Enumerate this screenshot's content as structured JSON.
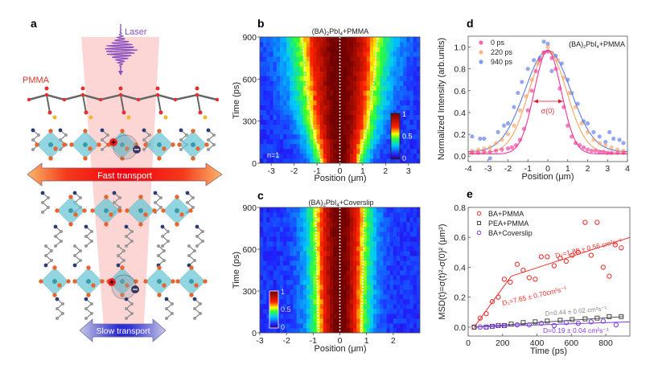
{
  "figure": {
    "panel_labels": [
      "a",
      "b",
      "c",
      "d",
      "e"
    ]
  },
  "schematic": {
    "laser_label": "Laser",
    "pmma_label": "PMMA",
    "fast_transport_label": "Fast transport",
    "slow_transport_label": "Slow transport",
    "colors": {
      "beam": "#fcd0d0",
      "laser": "#8a4fc0",
      "pmma_label": "#d23a2a",
      "octahedron": "#6cc8d6",
      "iodide": "#e8642c",
      "nitrogen": "#2a3f7a",
      "carbon": "#9a9a9a",
      "fast_arrow": "#f01818",
      "slow_arrow": "#3a3ad8"
    }
  },
  "chart_data": [
    {
      "panel": "b",
      "type": "heatmap",
      "title": "(BA)2PbI4+PMMA",
      "title_main": "(BA)",
      "title_sub1": "2",
      "title_mid": "PbI",
      "title_sub2": "4",
      "title_tail": "+PMMA",
      "xlabel": "Position (μm)",
      "ylabel": "Time (ps)",
      "xlim": [
        -3.5,
        3.5
      ],
      "ylim": [
        0,
        900
      ],
      "xticks": [
        -3,
        -2,
        -1,
        0,
        1,
        2,
        3
      ],
      "yticks": [
        0,
        300,
        600,
        900
      ],
      "colorbar": {
        "ticks": [
          "1",
          "0.5",
          "0"
        ],
        "range": [
          0,
          1
        ],
        "placement": "bottom-right"
      },
      "annotation": "n=1",
      "sigma_at_t": {
        "t": [
          0,
          300,
          600,
          900
        ],
        "halfwidth": [
          0.8,
          1.25,
          1.5,
          1.65
        ]
      },
      "center": 0
    },
    {
      "panel": "c",
      "type": "heatmap",
      "title": "(BA)2PbI4+Coverslip",
      "title_main": "(BA)",
      "title_sub1": "2",
      "title_mid": "PbI",
      "title_sub2": "4",
      "title_tail": "+Coverslip",
      "xlabel": "Position (μm)",
      "ylabel": "Time (ps)",
      "xlim": [
        -3,
        3
      ],
      "ylim": [
        0,
        900
      ],
      "xticks": [
        -3,
        -2,
        -1,
        0,
        1,
        2
      ],
      "yticks": [
        0,
        300,
        600,
        900
      ],
      "colorbar": {
        "ticks": [
          "1",
          "0.5",
          "0"
        ],
        "range": [
          0,
          1
        ],
        "placement": "bottom-left"
      },
      "sigma_at_t": {
        "t": [
          0,
          300,
          600,
          900
        ],
        "halfwidth": [
          0.8,
          0.85,
          0.88,
          0.9
        ]
      },
      "center": 0
    },
    {
      "panel": "d",
      "type": "scatter",
      "title": "(BA)2PbI4+PMMA",
      "title_main": "(BA)",
      "title_sub1": "2",
      "title_mid": "PbI",
      "title_sub2": "4",
      "title_tail": "+PMMA",
      "xlabel": "Position (μm)",
      "ylabel": "Normalized Intensity (arb.units)",
      "xlim": [
        -4,
        4
      ],
      "ylim": [
        -0.05,
        1.1
      ],
      "xticks": [
        -4,
        -3,
        -2,
        -1,
        0,
        1,
        2,
        3,
        4
      ],
      "yticks": [
        "0.0",
        "0.2",
        "0.4",
        "0.6",
        "0.8",
        "1.0"
      ],
      "legend_placement": "top-left",
      "annotation": "σ(0)",
      "series": [
        {
          "name": "0 ps",
          "color": "#f0359a",
          "fit_sigma": 0.68,
          "fit_amp": 0.95,
          "fit_offset": 0.02,
          "x": [
            -3.8,
            -3.5,
            -3.2,
            -2.9,
            -2.6,
            -2.3,
            -2.0,
            -1.8,
            -1.6,
            -1.4,
            -1.2,
            -1.0,
            -0.8,
            -0.6,
            -0.4,
            -0.2,
            0.0,
            0.2,
            0.4,
            0.6,
            0.8,
            1.0,
            1.2,
            1.4,
            1.6,
            1.8,
            2.0,
            2.2,
            2.4,
            2.6,
            2.8,
            3.0,
            3.2,
            3.5,
            3.8
          ],
          "y": [
            0.03,
            0.03,
            0.04,
            0.04,
            0.05,
            0.06,
            0.07,
            0.08,
            0.1,
            0.15,
            0.25,
            0.42,
            0.6,
            0.78,
            0.88,
            0.95,
            0.96,
            0.9,
            0.8,
            0.62,
            0.45,
            0.28,
            0.18,
            0.12,
            0.1,
            0.08,
            0.06,
            0.05,
            0.05,
            0.04,
            0.04,
            0.03,
            0.03,
            0.03,
            0.03
          ]
        },
        {
          "name": "220 ps",
          "color": "#f7a25c",
          "fit_sigma": 0.95,
          "fit_amp": 0.93,
          "fit_offset": 0.03,
          "x": [
            -3.8,
            -3.5,
            -3.2,
            -2.9,
            -2.6,
            -2.3,
            -2.0,
            -1.7,
            -1.4,
            -1.1,
            -0.8,
            -0.5,
            -0.2,
            0.0,
            0.2,
            0.5,
            0.8,
            1.1,
            1.4,
            1.7,
            2.0,
            2.3,
            2.6,
            2.9,
            3.2,
            3.5,
            3.8
          ],
          "y": [
            0.05,
            0.06,
            0.07,
            0.08,
            0.12,
            0.15,
            0.2,
            0.28,
            0.42,
            0.55,
            0.7,
            0.85,
            0.95,
            1.0,
            0.95,
            0.88,
            0.72,
            0.58,
            0.45,
            0.3,
            0.22,
            0.15,
            0.12,
            0.1,
            0.08,
            0.06,
            0.05
          ]
        },
        {
          "name": "940 ps",
          "color": "#5a7ae6",
          "fit_sigma": 1.15,
          "fit_amp": 0.93,
          "fit_offset": 0.04,
          "x": [
            -3.8,
            -3.4,
            -3.2,
            -2.9,
            -2.5,
            -2.2,
            -2.0,
            -1.7,
            -1.5,
            -1.3,
            -1.0,
            -0.7,
            -0.4,
            -0.2,
            0.0,
            0.2,
            0.4,
            0.7,
            1.0,
            1.2,
            1.5,
            1.8,
            2.0,
            2.3,
            2.6,
            2.9,
            3.1,
            3.3,
            3.6,
            3.8
          ],
          "y": [
            0.18,
            0.16,
            0.16,
            -0.02,
            0.22,
            0.28,
            0.3,
            0.45,
            0.58,
            0.68,
            0.8,
            0.88,
            0.9,
            1.05,
            1.03,
            0.78,
            0.92,
            0.85,
            0.7,
            0.58,
            0.48,
            0.32,
            0.3,
            0.22,
            0.18,
            0.13,
            0.22,
            0.16,
            0.15,
            0.12
          ]
        }
      ]
    },
    {
      "panel": "e",
      "type": "scatter",
      "xlabel": "Time (ps)",
      "ylabel": "MSD(t)=σ(t)²-σ(0)² (μm²)",
      "xlim": [
        0,
        940
      ],
      "ylim": [
        -0.06,
        0.8
      ],
      "xticks": [
        0,
        200,
        400,
        600,
        800
      ],
      "yticks": [
        "0.0",
        "0.2",
        "0.4",
        "0.6",
        "0.8"
      ],
      "legend_placement": "top-left",
      "series": [
        {
          "name": "BA+PMMA",
          "color": "#f0302e",
          "marker": "circle",
          "x": [
            35,
            70,
            105,
            140,
            175,
            210,
            245,
            285,
            320,
            355,
            390,
            425,
            460,
            500,
            535,
            570,
            605,
            640,
            680,
            715,
            750,
            785,
            820,
            855,
            890
          ],
          "y": [
            0.0,
            0.06,
            0.09,
            0.17,
            0.2,
            0.32,
            0.3,
            0.42,
            0.38,
            0.33,
            0.32,
            0.47,
            0.47,
            0.41,
            0.46,
            0.44,
            0.48,
            0.5,
            0.7,
            0.48,
            0.7,
            0.4,
            0.34,
            0.55,
            0.53
          ]
        },
        {
          "name": "PEA+PMMA",
          "color": "#333333",
          "marker": "square",
          "x": [
            35,
            105,
            140,
            175,
            210,
            250,
            320,
            390,
            460,
            535,
            605,
            680,
            750,
            820,
            890
          ],
          "y": [
            0.0,
            0.0,
            0.005,
            0.01,
            0.01,
            0.02,
            0.03,
            0.035,
            0.04,
            0.045,
            0.05,
            0.055,
            0.06,
            0.07,
            0.07
          ]
        },
        {
          "name": "BA+Coverslip",
          "color": "#7a3ae6",
          "marker": "circle",
          "x": [
            70,
            105,
            140,
            175,
            210,
            285,
            355,
            425,
            500,
            570,
            640,
            715,
            785,
            860
          ],
          "y": [
            0.0,
            0.0,
            0.005,
            0.01,
            0.01,
            0.015,
            0.015,
            0.025,
            0.01,
            0.03,
            0.025,
            0.035,
            0.04,
            0.015
          ]
        }
      ],
      "fits": [
        {
          "name": "D1",
          "color": "#f0302e",
          "x": [
            35,
            250
          ],
          "y": [
            0.0,
            0.34
          ]
        },
        {
          "name": "D2",
          "color": "#f0302e",
          "x": [
            250,
            940
          ],
          "y": [
            0.34,
            0.6
          ]
        },
        {
          "name": "D_PEA",
          "color": "#555555",
          "x": [
            35,
            900
          ],
          "y": [
            0.0,
            0.07
          ]
        },
        {
          "name": "D_cover",
          "color": "#7a3ae6",
          "x": [
            35,
            940
          ],
          "y": [
            0.0,
            0.035
          ]
        }
      ],
      "annotations": {
        "d2": "D₂=1.88 ± 0.56 cm²s⁻¹",
        "d1": "D₁=7.65 ± 0.70cm²s⁻¹",
        "d_pea": "D=0.44 ± 0.02 cm²s⁻¹",
        "d_cover": "D=0.19 ± 0.04 cm²s⁻¹"
      }
    }
  ]
}
